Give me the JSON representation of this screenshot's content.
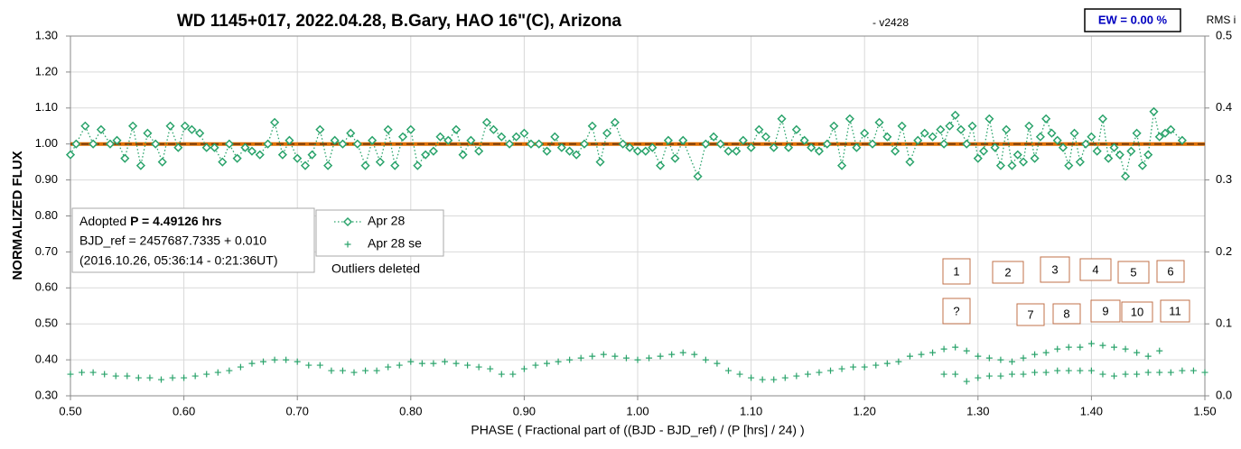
{
  "chart_data": {
    "type": "scatter",
    "title": "WD 1145+017, 2022.04.28, B.Gary, HAO 16\"(C), Arizona",
    "subtitle": "-  v2428",
    "ew_label": "EW = 0.00 %",
    "xlabel": "PHASE ( Fractional part of ((BJD - BJD_ref) / (P [hrs] / 24) )",
    "ylabel": "NORMALIZED FLUX",
    "y2label": "RMS i",
    "info": {
      "prefix": "Adopted",
      "period": "P = 4.49126 hrs",
      "bjd_ref": "BJD_ref = 2457687.7335 + 0.010",
      "date": "(2016.10.26, 05:36:14 - 0:21:36UT)"
    },
    "note": "Outliers deleted",
    "box_labels": [
      "1",
      "2",
      "3",
      "4",
      "5",
      "6",
      "?",
      "7",
      "8",
      "9",
      "10",
      "11"
    ],
    "xlim": [
      0.5,
      1.5
    ],
    "xticks": [
      {
        "value": 0.5,
        "label": "0.50"
      },
      {
        "value": 0.6,
        "label": "0.60"
      },
      {
        "value": 0.7,
        "label": "0.70"
      },
      {
        "value": 0.8,
        "label": "0.80"
      },
      {
        "value": 0.9,
        "label": "0.90"
      },
      {
        "value": 1.0,
        "label": "1.00"
      },
      {
        "value": 1.1,
        "label": "1.10"
      },
      {
        "value": 1.2,
        "label": "1.20"
      },
      {
        "value": 1.3,
        "label": "1.30"
      },
      {
        "value": 1.4,
        "label": "1.40"
      },
      {
        "value": 1.5,
        "label": "1.50"
      }
    ],
    "ylim": [
      0.3,
      1.3
    ],
    "yticks": [
      {
        "value": 0.3,
        "label": "0.30"
      },
      {
        "value": 0.4,
        "label": "0.40"
      },
      {
        "value": 0.5,
        "label": "0.50"
      },
      {
        "value": 0.6,
        "label": "0.60"
      },
      {
        "value": 0.7,
        "label": "0.70"
      },
      {
        "value": 0.8,
        "label": "0.80"
      },
      {
        "value": 0.9,
        "label": "0.90"
      },
      {
        "value": 1.0,
        "label": "1.00"
      },
      {
        "value": 1.1,
        "label": "1.10"
      },
      {
        "value": 1.2,
        "label": "1.20"
      },
      {
        "value": 1.3,
        "label": "1.30"
      }
    ],
    "y2lim": [
      0,
      0.5
    ],
    "y2ticks": [
      {
        "value": 0,
        "label": "0.0"
      },
      0.1,
      0.2,
      0.3,
      0.4,
      0.5
    ],
    "grid": true,
    "reference_lines": [
      {
        "value": 1.0,
        "color": "#e07000",
        "dash": false
      },
      {
        "value": 1.0,
        "color": "#7b3f10",
        "dash": true
      }
    ],
    "series": [
      {
        "name": "Apr 28",
        "color": "#2aa36b",
        "marker": "diamond",
        "line": "dotted",
        "x": [
          0.5,
          0.505,
          0.513,
          0.52,
          0.527,
          0.535,
          0.541,
          0.548,
          0.555,
          0.562,
          0.568,
          0.575,
          0.581,
          0.588,
          0.595,
          0.601,
          0.607,
          0.614,
          0.62,
          0.627,
          0.634,
          0.64,
          0.647,
          0.654,
          0.66,
          0.667,
          0.674,
          0.68,
          0.687,
          0.693,
          0.7,
          0.707,
          0.713,
          0.72,
          0.727,
          0.733,
          0.74,
          0.747,
          0.753,
          0.76,
          0.766,
          0.773,
          0.78,
          0.786,
          0.793,
          0.8,
          0.806,
          0.813,
          0.82,
          0.826,
          0.833,
          0.84,
          0.846,
          0.853,
          0.86,
          0.867,
          0.873,
          0.88,
          0.887,
          0.893,
          0.9,
          0.906,
          0.913,
          0.92,
          0.927,
          0.933,
          0.94,
          0.946,
          0.953,
          0.96,
          0.967,
          0.973,
          0.98,
          0.987,
          0.993,
          1.0,
          1.007,
          1.013,
          1.02,
          1.027,
          1.033,
          1.04,
          1.053,
          1.06,
          1.067,
          1.073,
          1.08,
          1.087,
          1.093,
          1.1,
          1.107,
          1.113,
          1.12,
          1.127,
          1.133,
          1.14,
          1.147,
          1.153,
          1.16,
          1.167,
          1.173,
          1.18,
          1.187,
          1.193,
          1.2,
          1.207,
          1.213,
          1.22,
          1.227,
          1.233,
          1.24,
          1.247,
          1.253,
          1.26,
          1.267,
          1.27,
          1.275,
          1.28,
          1.285,
          1.29,
          1.295,
          1.3,
          1.305,
          1.31,
          1.315,
          1.32,
          1.325,
          1.33,
          1.335,
          1.34,
          1.345,
          1.35,
          1.355,
          1.36,
          1.365,
          1.37,
          1.375,
          1.38,
          1.385,
          1.39,
          1.395,
          1.4,
          1.405,
          1.41,
          1.415,
          1.42,
          1.425,
          1.43,
          1.435,
          1.44,
          1.445,
          1.45,
          1.455,
          1.46,
          1.465,
          1.47,
          1.48
        ],
        "values": [
          0.97,
          1.0,
          1.05,
          1.0,
          1.04,
          1.0,
          1.01,
          0.96,
          1.05,
          0.94,
          1.03,
          1.0,
          0.95,
          1.05,
          0.99,
          1.05,
          1.04,
          1.03,
          0.99,
          0.99,
          0.95,
          1.0,
          0.96,
          0.99,
          0.98,
          0.97,
          1.0,
          1.06,
          0.97,
          1.01,
          0.96,
          0.94,
          0.97,
          1.04,
          0.94,
          1.01,
          1.0,
          1.03,
          1.0,
          0.94,
          1.01,
          0.95,
          1.04,
          0.94,
          1.02,
          1.04,
          0.94,
          0.97,
          0.98,
          1.02,
          1.01,
          1.04,
          0.97,
          1.01,
          0.98,
          1.06,
          1.04,
          1.02,
          1.0,
          1.02,
          1.03,
          1.0,
          1.0,
          0.98,
          1.02,
          0.99,
          0.98,
          0.97,
          1.0,
          1.05,
          0.95,
          1.03,
          1.06,
          1.0,
          0.99,
          0.98,
          0.98,
          0.99,
          0.94,
          1.01,
          0.96,
          1.01,
          0.91,
          1.0,
          1.02,
          1.0,
          0.98,
          0.98,
          1.01,
          0.99,
          1.04,
          1.02,
          0.99,
          1.07,
          0.99,
          1.04,
          1.01,
          0.99,
          0.98,
          1.0,
          1.05,
          0.94,
          1.07,
          0.99,
          1.03,
          1.0,
          1.06,
          1.02,
          0.98,
          1.05,
          0.95,
          1.01,
          1.03,
          1.02,
          1.04,
          1.0,
          1.05,
          1.08,
          1.04,
          1.0,
          1.05,
          0.96,
          0.98,
          1.07,
          0.99,
          0.94,
          1.04,
          0.94,
          0.97,
          0.95,
          1.05,
          0.96,
          1.02,
          1.07,
          1.03,
          1.01,
          0.99,
          0.94,
          1.03,
          0.95,
          1.0,
          1.02,
          0.98,
          1.07,
          0.96,
          0.99,
          0.97,
          0.91,
          0.98,
          1.03,
          0.94,
          0.97,
          1.09,
          1.02,
          1.03,
          1.04,
          1.01
        ]
      },
      {
        "name": "Apr 28 se",
        "color": "#2aa36b",
        "marker": "plus",
        "line": "none",
        "x": [
          0.5,
          0.51,
          0.52,
          0.53,
          0.54,
          0.55,
          0.56,
          0.57,
          0.58,
          0.59,
          0.6,
          0.61,
          0.62,
          0.63,
          0.64,
          0.65,
          0.66,
          0.67,
          0.68,
          0.69,
          0.7,
          0.71,
          0.72,
          0.73,
          0.74,
          0.75,
          0.76,
          0.77,
          0.78,
          0.79,
          0.8,
          0.81,
          0.82,
          0.83,
          0.84,
          0.85,
          0.86,
          0.87,
          0.88,
          0.89,
          0.9,
          0.91,
          0.92,
          0.93,
          0.94,
          0.95,
          0.96,
          0.97,
          0.98,
          0.99,
          1.0,
          1.01,
          1.02,
          1.03,
          1.04,
          1.05,
          1.06,
          1.07,
          1.08,
          1.09,
          1.1,
          1.11,
          1.12,
          1.13,
          1.14,
          1.15,
          1.16,
          1.17,
          1.18,
          1.19,
          1.2,
          1.21,
          1.22,
          1.23,
          1.24,
          1.25,
          1.26,
          1.27,
          1.28,
          1.29,
          1.3,
          1.31,
          1.32,
          1.33,
          1.34,
          1.35,
          1.36,
          1.37,
          1.38,
          1.39,
          1.4,
          1.41,
          1.42,
          1.43,
          1.44,
          1.45,
          1.46,
          1.27,
          1.28,
          1.29,
          1.3,
          1.31,
          1.32,
          1.33,
          1.34,
          1.35,
          1.36,
          1.37,
          1.38,
          1.39,
          1.4,
          1.41,
          1.42,
          1.43,
          1.44,
          1.45,
          1.46,
          1.47,
          1.48,
          1.49,
          1.5
        ],
        "values": [
          0.36,
          0.365,
          0.365,
          0.36,
          0.355,
          0.355,
          0.35,
          0.35,
          0.345,
          0.35,
          0.35,
          0.355,
          0.36,
          0.365,
          0.37,
          0.38,
          0.39,
          0.395,
          0.4,
          0.4,
          0.395,
          0.385,
          0.385,
          0.37,
          0.37,
          0.365,
          0.37,
          0.37,
          0.38,
          0.385,
          0.395,
          0.39,
          0.39,
          0.395,
          0.39,
          0.385,
          0.38,
          0.375,
          0.36,
          0.36,
          0.375,
          0.385,
          0.39,
          0.395,
          0.4,
          0.405,
          0.41,
          0.415,
          0.41,
          0.405,
          0.4,
          0.405,
          0.41,
          0.415,
          0.42,
          0.415,
          0.4,
          0.39,
          0.37,
          0.36,
          0.35,
          0.345,
          0.345,
          0.35,
          0.355,
          0.36,
          0.365,
          0.37,
          0.375,
          0.38,
          0.38,
          0.385,
          0.39,
          0.395,
          0.41,
          0.415,
          0.42,
          0.43,
          0.435,
          0.425,
          0.41,
          0.405,
          0.4,
          0.395,
          0.405,
          0.415,
          0.42,
          0.43,
          0.435,
          0.435,
          0.445,
          0.44,
          0.435,
          0.43,
          0.42,
          0.41,
          0.425,
          0.36,
          0.36,
          0.34,
          0.35,
          0.355,
          0.355,
          0.36,
          0.36,
          0.365,
          0.365,
          0.37,
          0.37,
          0.37,
          0.37,
          0.36,
          0.355,
          0.36,
          0.36,
          0.365,
          0.365,
          0.365,
          0.37,
          0.37,
          0.365
        ]
      }
    ]
  }
}
